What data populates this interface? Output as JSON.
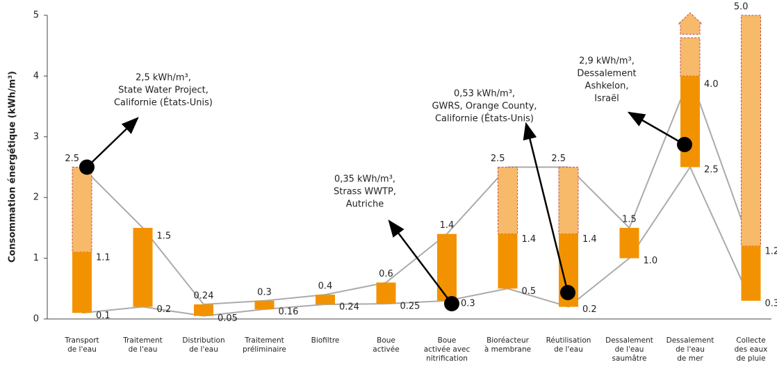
{
  "chart_data": {
    "type": "range-bar",
    "y_label": "Consommation énergétique (kWh/m³)",
    "ylim": [
      0,
      5
    ],
    "yticks": [
      0,
      1,
      2,
      3,
      4,
      5
    ],
    "categories": [
      [
        "Transport",
        "de l'eau"
      ],
      [
        "Traitement",
        "de l'eau"
      ],
      [
        "Distribution",
        "de l'eau"
      ],
      [
        "Traitement",
        "préliminaire"
      ],
      [
        "Biofiltre"
      ],
      [
        "Boue",
        "activée"
      ],
      [
        "Boue",
        "activée avec",
        "nitrification"
      ],
      [
        "Bioréacteur",
        "à membrane"
      ],
      [
        "Réutilisation",
        "de l'eau"
      ],
      [
        "Dessalement",
        "de l'eau",
        "saumâtre"
      ],
      [
        "Dessalement",
        "de l'eau",
        "de mer"
      ],
      [
        "Collecte",
        "des eaux",
        "de pluie"
      ]
    ],
    "low": [
      0.1,
      0.2,
      0.05,
      0.16,
      0.24,
      0.25,
      0.3,
      0.5,
      0.2,
      1.0,
      2.5,
      0.3
    ],
    "solid_top": [
      1.1,
      1.5,
      0.24,
      0.3,
      0.4,
      0.6,
      1.4,
      1.4,
      1.4,
      1.5,
      4.0,
      1.2
    ],
    "high": [
      2.5,
      null,
      null,
      null,
      null,
      null,
      null,
      2.5,
      2.5,
      null,
      null,
      5.0
    ],
    "value_labels": {
      "low": [
        "0.1",
        "0.2",
        "0.05",
        "0.16",
        "0.24",
        "0.25",
        "0.3",
        "0.5",
        "0.2",
        "1.0",
        "2.5",
        "0.3"
      ],
      "solid_top": [
        "1.1",
        "1.5",
        "0.24",
        "0.3",
        "0.4",
        "0.6",
        "1.4",
        "1.4",
        "1.4",
        "1.5",
        "4.0",
        "1.2"
      ],
      "high": [
        "2.5",
        null,
        null,
        null,
        null,
        null,
        null,
        "2.5",
        "2.5",
        null,
        null,
        "5.0"
      ]
    },
    "arrow_up": [
      false,
      false,
      false,
      false,
      false,
      false,
      false,
      false,
      false,
      false,
      true,
      false
    ],
    "upper_line_uses_high": [
      true,
      false,
      false,
      false,
      false,
      false,
      false,
      true,
      true,
      false,
      false,
      false
    ],
    "solid_color": "#f39200",
    "light_color": "#f7b96a",
    "dash_color": "#c0504d",
    "line_color": "#aaaaaa",
    "annotations": [
      {
        "lines": [
          "2,5 kWh/m³,",
          "State Water Project,",
          "Californie (États-Unis)"
        ]
      },
      {
        "lines": [
          "0,35 kWh/m³,",
          "Strass WWTP,",
          "Autriche"
        ]
      },
      {
        "lines": [
          "0,53 kWh/m³,",
          "GWRS, Orange County,",
          "Californie (États-Unis)"
        ]
      },
      {
        "lines": [
          "2,9 kWh/m³,",
          "Dessalement",
          "Ashkelon,",
          "Israël"
        ]
      }
    ]
  }
}
